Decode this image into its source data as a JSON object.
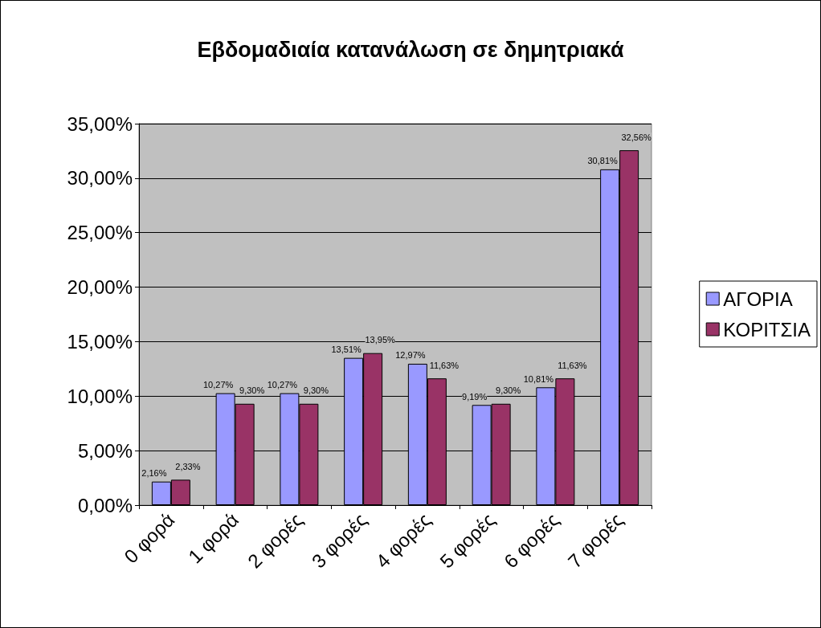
{
  "chart_data": {
    "type": "bar",
    "title": "Εβδομαδιαία κατανάλωση σε δημητριακά",
    "categories": [
      "0 φορά",
      "1 φορά",
      "2 φορές",
      "3 φορές",
      "4 φορές",
      "5 φορές",
      "6 φορές",
      "7 φορές"
    ],
    "series": [
      {
        "name": "ΑΓΟΡΙΑ",
        "color": "#9999ff",
        "values": [
          2.16,
          10.27,
          10.27,
          13.51,
          12.97,
          9.19,
          10.81,
          30.81
        ],
        "value_labels": [
          "2,16%",
          "10,27%",
          "10,27%",
          "13,51%",
          "12,97%",
          "9,19%",
          "10,81%",
          "30,81%"
        ]
      },
      {
        "name": "ΚΟΡΙΤΣΙΑ",
        "color": "#993366",
        "values": [
          2.33,
          9.3,
          9.3,
          13.95,
          11.63,
          9.3,
          11.63,
          32.56
        ],
        "value_labels": [
          "2,33%",
          "9,30%",
          "9,30%",
          "13,95%",
          "11,63%",
          "9,30%",
          "11,63%",
          "32,56%"
        ]
      }
    ],
    "ylim": [
      0,
      35
    ],
    "yticks": [
      {
        "value": 0,
        "label": "0,00%"
      },
      {
        "value": 5,
        "label": "5,00%"
      },
      {
        "value": 10,
        "label": "10,00%"
      },
      {
        "value": 15,
        "label": "15,00%"
      },
      {
        "value": 20,
        "label": "20,00%"
      },
      {
        "value": 25,
        "label": "25,00%"
      },
      {
        "value": 30,
        "label": "30,00%"
      },
      {
        "value": 35,
        "label": "35,00%"
      }
    ],
    "grid": "y",
    "legend": "right"
  }
}
